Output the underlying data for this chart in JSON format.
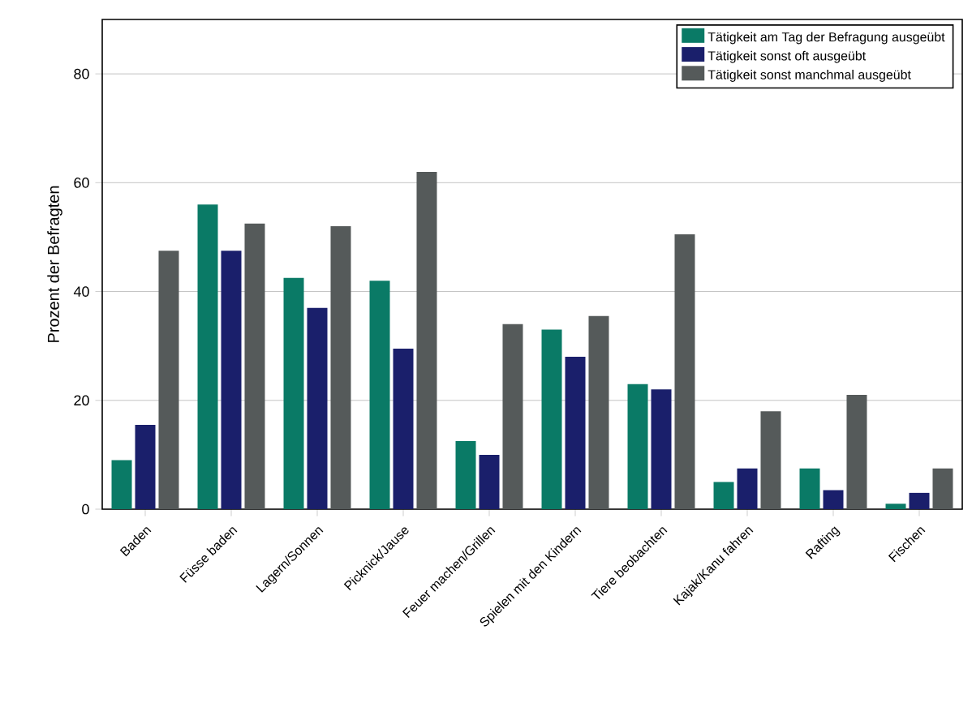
{
  "chart_data": {
    "type": "bar",
    "ylabel": "Prozent der Befragten",
    "categories": [
      "Baden",
      "Füsse baden",
      "Lagern/Sonnen",
      "Picknick/Jause",
      "Feuer machen/Grillen",
      "Spielen mit den Kindern",
      "Tiere beobachten",
      "Kajak/Kanu fahren",
      "Rafting",
      "Fischen"
    ],
    "series": [
      {
        "name": "Tätigkeit am Tag der Befragung ausgeübt",
        "color": "#0a7a66",
        "values": [
          9,
          56,
          42.5,
          42,
          12.5,
          33,
          23,
          5,
          7.5,
          1
        ]
      },
      {
        "name": "Tätigkeit sonst oft ausgeübt",
        "color": "#1a1f6b",
        "values": [
          15.5,
          47.5,
          37,
          29.5,
          10,
          28,
          22,
          7.5,
          3.5,
          3
        ]
      },
      {
        "name": "Tätigkeit sonst manchmal ausgeübt",
        "color": "#555a5a",
        "values": [
          47.5,
          52.5,
          52,
          62,
          34,
          35.5,
          50.5,
          18,
          21,
          7.5
        ]
      }
    ],
    "ylim": [
      0,
      90
    ],
    "yticks": [
      0,
      20,
      40,
      60,
      80
    ],
    "grid": "y",
    "legend": "top right"
  }
}
